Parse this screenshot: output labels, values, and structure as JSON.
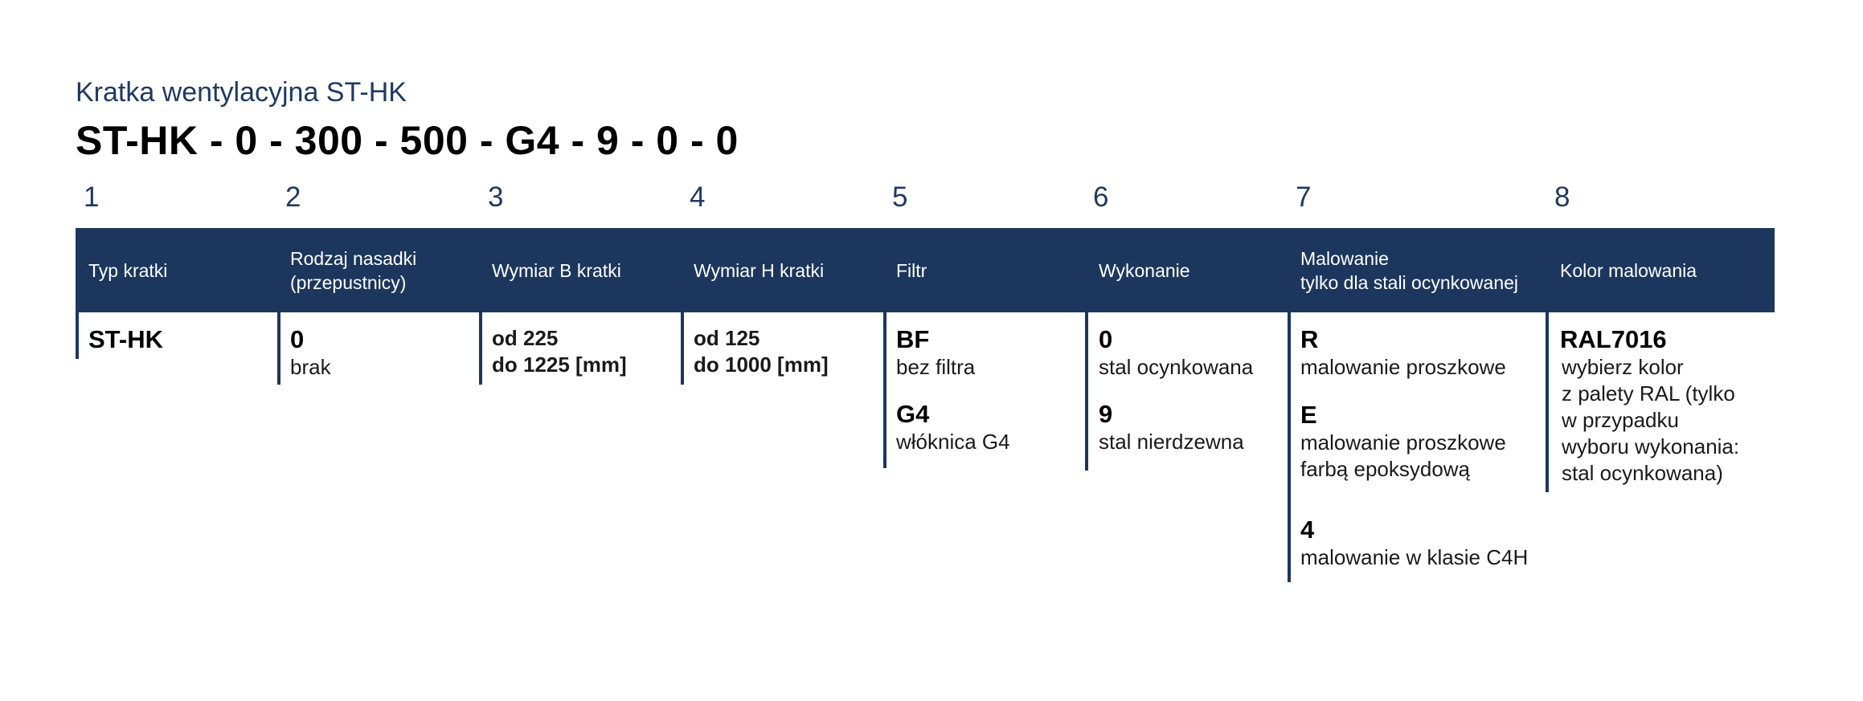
{
  "subtitle": "Kratka wentylacyjna ST-HK",
  "code": "ST-HK - 0 - 300 - 500 - G4 - 9 - 0 - 0",
  "numbers": [
    "1",
    "2",
    "3",
    "4",
    "5",
    "6",
    "7",
    "8"
  ],
  "headers": [
    "Typ kratki",
    "Rodzaj nasadki\n (przepustnicy)",
    "Wymiar B kratki",
    "Wymiar H kratki",
    "Filtr",
    "Wykonanie",
    "Malowanie\ntylko dla stali ocynkowanej",
    "Kolor malowania"
  ],
  "col1": {
    "value": "ST-HK"
  },
  "col2": {
    "value": "0",
    "desc": "brak"
  },
  "col3": {
    "line1": "od 225",
    "line2": "do 1225 [mm]"
  },
  "col4": {
    "line1": "od 125",
    "line2": "do 1000 [mm]"
  },
  "col5": [
    {
      "value": "BF",
      "desc": "bez filtra"
    },
    {
      "value": "G4",
      "desc": "włóknica G4"
    }
  ],
  "col6": [
    {
      "value": "0",
      "desc": "stal ocynkowana"
    },
    {
      "value": "9",
      "desc": "stal nierdzewna"
    }
  ],
  "col7": [
    {
      "value": "R",
      "desc": "malowanie proszkowe"
    },
    {
      "value": "E",
      "desc": "malowanie proszkowe\nfarbą epoksydową"
    },
    {
      "value": "4",
      "desc": "malowanie w klasie C4H"
    }
  ],
  "col8": {
    "value": "RAL7016",
    "desc": "wybierz kolor\nz palety RAL (tylko\nw przypadku\nwyboru wykonania:\nstal ocynkowana)"
  }
}
